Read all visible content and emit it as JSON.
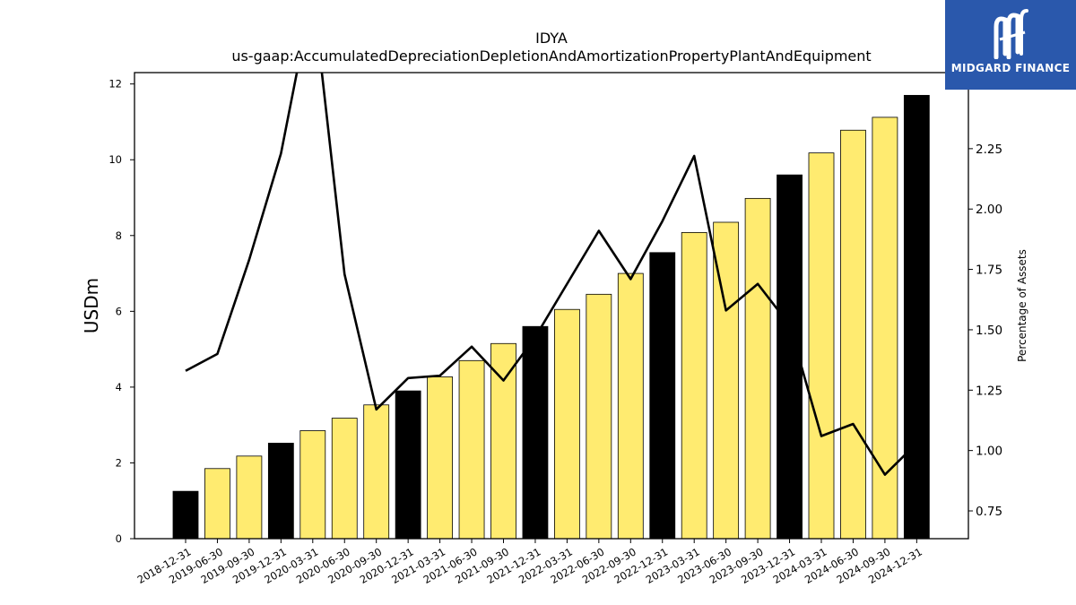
{
  "chart_data": {
    "type": "bar",
    "title": "IDYA",
    "subtitle": "us-gaap:AccumulatedDepreciationDepletionAndAmortizationPropertyPlantAndEquipment",
    "ylabel": "USDm",
    "ylabel_right": "Percentage of Assets",
    "categories": [
      "2018-12-31",
      "2019-06-30",
      "2019-09-30",
      "2019-12-31",
      "2020-03-31",
      "2020-06-30",
      "2020-09-30",
      "2020-12-31",
      "2021-03-31",
      "2021-06-30",
      "2021-09-30",
      "2021-12-31",
      "2022-03-31",
      "2022-06-30",
      "2022-09-30",
      "2022-12-31",
      "2023-03-31",
      "2023-06-30",
      "2023-09-30",
      "2023-12-31",
      "2024-03-31",
      "2024-06-30",
      "2024-09-30",
      "2024-12-31"
    ],
    "series": [
      {
        "type": "bar",
        "axis": "left",
        "values": [
          1.25,
          1.85,
          2.18,
          2.52,
          2.85,
          3.18,
          3.53,
          3.9,
          4.27,
          4.7,
          5.15,
          5.6,
          6.05,
          6.45,
          7.0,
          7.55,
          8.08,
          8.35,
          8.98,
          9.6,
          10.18,
          10.78,
          11.12,
          11.7
        ],
        "colors": [
          "#000000",
          "#ffeb70",
          "#ffeb70",
          "#000000",
          "#ffeb70",
          "#ffeb70",
          "#ffeb70",
          "#000000",
          "#ffeb70",
          "#ffeb70",
          "#ffeb70",
          "#000000",
          "#ffeb70",
          "#ffeb70",
          "#ffeb70",
          "#000000",
          "#ffeb70",
          "#ffeb70",
          "#ffeb70",
          "#000000",
          "#ffeb70",
          "#ffeb70",
          "#ffeb70",
          "#000000"
        ]
      },
      {
        "type": "line",
        "axis": "right",
        "color": "#000000",
        "values": [
          1.33,
          1.4,
          1.79,
          2.23,
          2.9,
          1.73,
          1.17,
          1.3,
          1.31,
          1.43,
          1.29,
          1.47,
          1.69,
          1.91,
          1.71,
          1.95,
          2.22,
          1.58,
          1.69,
          1.52,
          1.06,
          1.11,
          0.9,
          1.03
        ]
      }
    ],
    "ylim": [
      0,
      12.3
    ],
    "yticks": [
      0,
      2,
      4,
      6,
      8,
      10,
      12
    ],
    "ylim_right": [
      0.635,
      2.565
    ],
    "yticks_right": [
      "0.75",
      "1.00",
      "1.25",
      "1.50",
      "1.75",
      "2.00",
      "2.25"
    ],
    "grid": false,
    "legend": "none"
  },
  "logo": {
    "text": "MIDGARD FINANCE",
    "color": "#2a58ac"
  }
}
